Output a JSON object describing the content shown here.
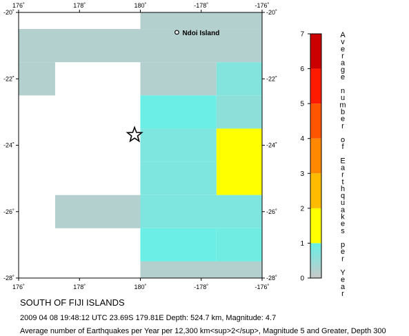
{
  "map": {
    "lon_ticks": [
      {
        "lon": 176,
        "label": "176˚"
      },
      {
        "lon": 178,
        "label": "178˚"
      },
      {
        "lon": 180,
        "label": "180˚"
      },
      {
        "lon": 182,
        "label": "-178˚"
      },
      {
        "lon": 184,
        "label": "-176˚"
      }
    ],
    "lat_ticks": [
      {
        "lat": -20,
        "label": "-20˚"
      },
      {
        "lat": -22,
        "label": "-22˚"
      },
      {
        "lat": -24,
        "label": "-24˚"
      },
      {
        "lat": -26,
        "label": "-26˚"
      },
      {
        "lat": -28,
        "label": "-28˚"
      }
    ],
    "extent": {
      "lon_min": 176,
      "lon_max": 184,
      "lat_min": -28,
      "lat_max": -20
    },
    "grid_cells": [
      {
        "lon0": 180,
        "lon1": 184,
        "lat0": -20.5,
        "lat1": -20.0,
        "value": 0.2
      },
      {
        "lon0": 176,
        "lon1": 184,
        "lat0": -21.5,
        "lat1": -20.5,
        "value": 0.2
      },
      {
        "lon0": 176,
        "lon1": 177.2,
        "lat0": -22.5,
        "lat1": -21.5,
        "value": 0.2
      },
      {
        "lon0": 180,
        "lon1": 182.5,
        "lat0": -22.5,
        "lat1": -21.5,
        "value": 0.2
      },
      {
        "lon0": 182.5,
        "lon1": 184,
        "lat0": -22.5,
        "lat1": -21.5,
        "value": 0.7
      },
      {
        "lon0": 180,
        "lon1": 182.5,
        "lat0": -23.5,
        "lat1": -22.5,
        "value": 0.95
      },
      {
        "lon0": 182.5,
        "lon1": 184,
        "lat0": -23.5,
        "lat1": -22.5,
        "value": 0.6
      },
      {
        "lon0": 180,
        "lon1": 182.5,
        "lat0": -24.5,
        "lat1": -23.5,
        "value": 0.75
      },
      {
        "lon0": 182.5,
        "lon1": 184,
        "lat0": -25.5,
        "lat1": -23.5,
        "value": 1.3
      },
      {
        "lon0": 180,
        "lon1": 182.5,
        "lat0": -25.5,
        "lat1": -24.5,
        "value": 0.75
      },
      {
        "lon0": 177.2,
        "lon1": 180,
        "lat0": -26.5,
        "lat1": -25.5,
        "value": 0.2
      },
      {
        "lon0": 180,
        "lon1": 184,
        "lat0": -26.5,
        "lat1": -25.5,
        "value": 0.75
      },
      {
        "lon0": 180,
        "lon1": 182.5,
        "lat0": -27.5,
        "lat1": -26.5,
        "value": 0.95
      },
      {
        "lon0": 182.5,
        "lon1": 184,
        "lat0": -27.5,
        "lat1": -26.5,
        "value": 0.9
      },
      {
        "lon0": 180,
        "lon1": 184,
        "lat0": -28.0,
        "lat1": -27.5,
        "value": 0.2
      }
    ],
    "place": {
      "name": "Ndoi Island",
      "lon": 181.2,
      "lat": -20.6
    },
    "epicenter": {
      "lon": 179.81,
      "lat": -23.69
    }
  },
  "colorscale": {
    "title": "Average number of Earthquakes per Year",
    "min": 0,
    "max": 7,
    "bands": [
      {
        "from": 0,
        "to": 1,
        "gradient": [
          "#c8c8c8",
          "#66f0e6"
        ]
      },
      {
        "from": 1,
        "to": 2,
        "color": "#ffff00"
      },
      {
        "from": 2,
        "to": 3,
        "color": "#ffbb00"
      },
      {
        "from": 3,
        "to": 4,
        "color": "#ff8800"
      },
      {
        "from": 4,
        "to": 5,
        "color": "#ff5500"
      },
      {
        "from": 5,
        "to": 6,
        "color": "#ff1a00"
      },
      {
        "from": 6,
        "to": 7,
        "color": "#cc0000"
      }
    ],
    "tick_labels": [
      "0",
      "1",
      "2",
      "3",
      "4",
      "5",
      "6",
      "7"
    ]
  },
  "caption": {
    "title": "SOUTH OF FIJI ISLANDS",
    "line1": "2009 04 08 19:48:12 UTC 23.69S 179.81E Depth: 524.7 km, Magnitude: 4.7",
    "line2": "Average number of Earthquakes per Year per 12,300 km<sup>2</sup>, Magnitude 5 and Greater, Depth 300"
  }
}
